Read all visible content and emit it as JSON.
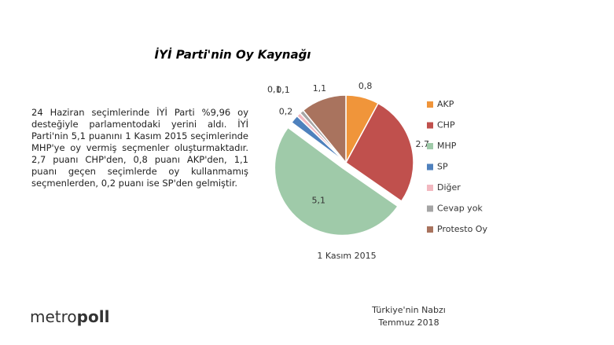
{
  "chart_data": {
    "type": "pie",
    "title": "İYİ Parti'nin Oy Kaynağı",
    "caption": "1 Kasım 2015",
    "categories": [
      "AKP",
      "CHP",
      "MHP",
      "SP",
      "Diğer",
      "Cevap yok",
      "Protesto Oy"
    ],
    "values": [
      0.8,
      2.7,
      5.1,
      0.2,
      0.1,
      0.1,
      1.1
    ],
    "value_labels": [
      "0,8",
      "2.7",
      "5,1",
      "0,2",
      "0,1",
      "0,1",
      "1,1"
    ],
    "colors": [
      "#f0953a",
      "#c0504d",
      "#9fcaa9",
      "#4f81bd",
      "#f2b8c0",
      "#a5a5a5",
      "#a9735e"
    ],
    "exploded": [
      "MHP"
    ],
    "legend": "right"
  },
  "description": "24 Haziran seçimlerinde İYİ Parti %9,96 oy desteğiyle parlamentodaki yerini aldı. İYİ Parti'nin 5,1 puanını 1 Kasım 2015 seçimlerinde MHP'ye oy vermiş seçmenler oluşturmaktadır. 2,7 puanı CHP'den, 0,8 puanı AKP'den, 1,1 puanı geçen seçimlerde oy kullanmamış seçmenlerden, 0,2 puanı ise SP'den gelmiştir.",
  "footer": {
    "logo_light": "metro",
    "logo_bold": "poll",
    "line1": "Türkiye'nin Nabzı",
    "line2": "Temmuz 2018"
  }
}
